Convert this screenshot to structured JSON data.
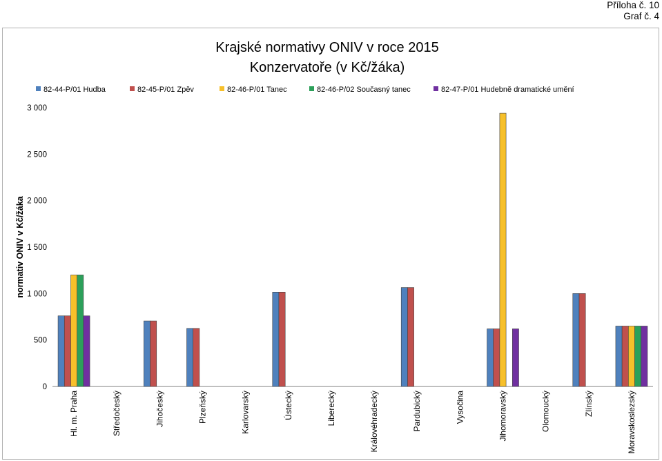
{
  "annex": {
    "line1": "Příloha č. 10",
    "line2": "Graf č. 4"
  },
  "chart_data": {
    "type": "bar",
    "title": "Krajské normativy ONIV v roce 2015",
    "subtitle": "Konzervatoře (v Kč/žáka)",
    "xlabel": "",
    "ylabel": "normativ ONIV v Kč/žáka",
    "ylim": [
      0,
      3000
    ],
    "yticks": [
      0,
      500,
      1000,
      1500,
      2000,
      2500,
      3000
    ],
    "ytick_labels": [
      "0",
      "500",
      "1 000",
      "1 500",
      "2 000",
      "2 500",
      "3 000"
    ],
    "grid": false,
    "legend_position": "top",
    "categories": [
      "Hl. m. Praha",
      "Středočeský",
      "Jihočeský",
      "Plzeňský",
      "Karlovarský",
      "Ústecký",
      "Liberecký",
      "Královéhradecký",
      "Pardubický",
      "Vysočina",
      "Jihomoravský",
      "Olomoucký",
      "Zlínský",
      "Moravskoslezský"
    ],
    "series": [
      {
        "name": "82-44-P/01 Hudba",
        "color": "#4f81bd",
        "values": [
          760,
          null,
          705,
          625,
          null,
          1015,
          null,
          null,
          1065,
          null,
          620,
          null,
          1000,
          650
        ]
      },
      {
        "name": "82-45-P/01 Zpěv",
        "color": "#c0504d",
        "values": [
          760,
          null,
          705,
          625,
          null,
          1015,
          null,
          null,
          1065,
          null,
          620,
          null,
          1000,
          650
        ]
      },
      {
        "name": "82-46-P/01 Tanec",
        "color": "#f7c02a",
        "values": [
          1200,
          null,
          null,
          null,
          null,
          null,
          null,
          null,
          null,
          null,
          2940,
          null,
          null,
          650
        ]
      },
      {
        "name": "82-46-P/02 Současný tanec",
        "color": "#2ca05a",
        "values": [
          1200,
          null,
          null,
          null,
          null,
          null,
          null,
          null,
          null,
          null,
          null,
          null,
          null,
          650
        ]
      },
      {
        "name": "82-47-P/01 Hudebně dramatické umění",
        "color": "#7030a0",
        "values": [
          760,
          null,
          null,
          null,
          null,
          null,
          null,
          null,
          null,
          null,
          620,
          null,
          null,
          650
        ]
      }
    ]
  }
}
